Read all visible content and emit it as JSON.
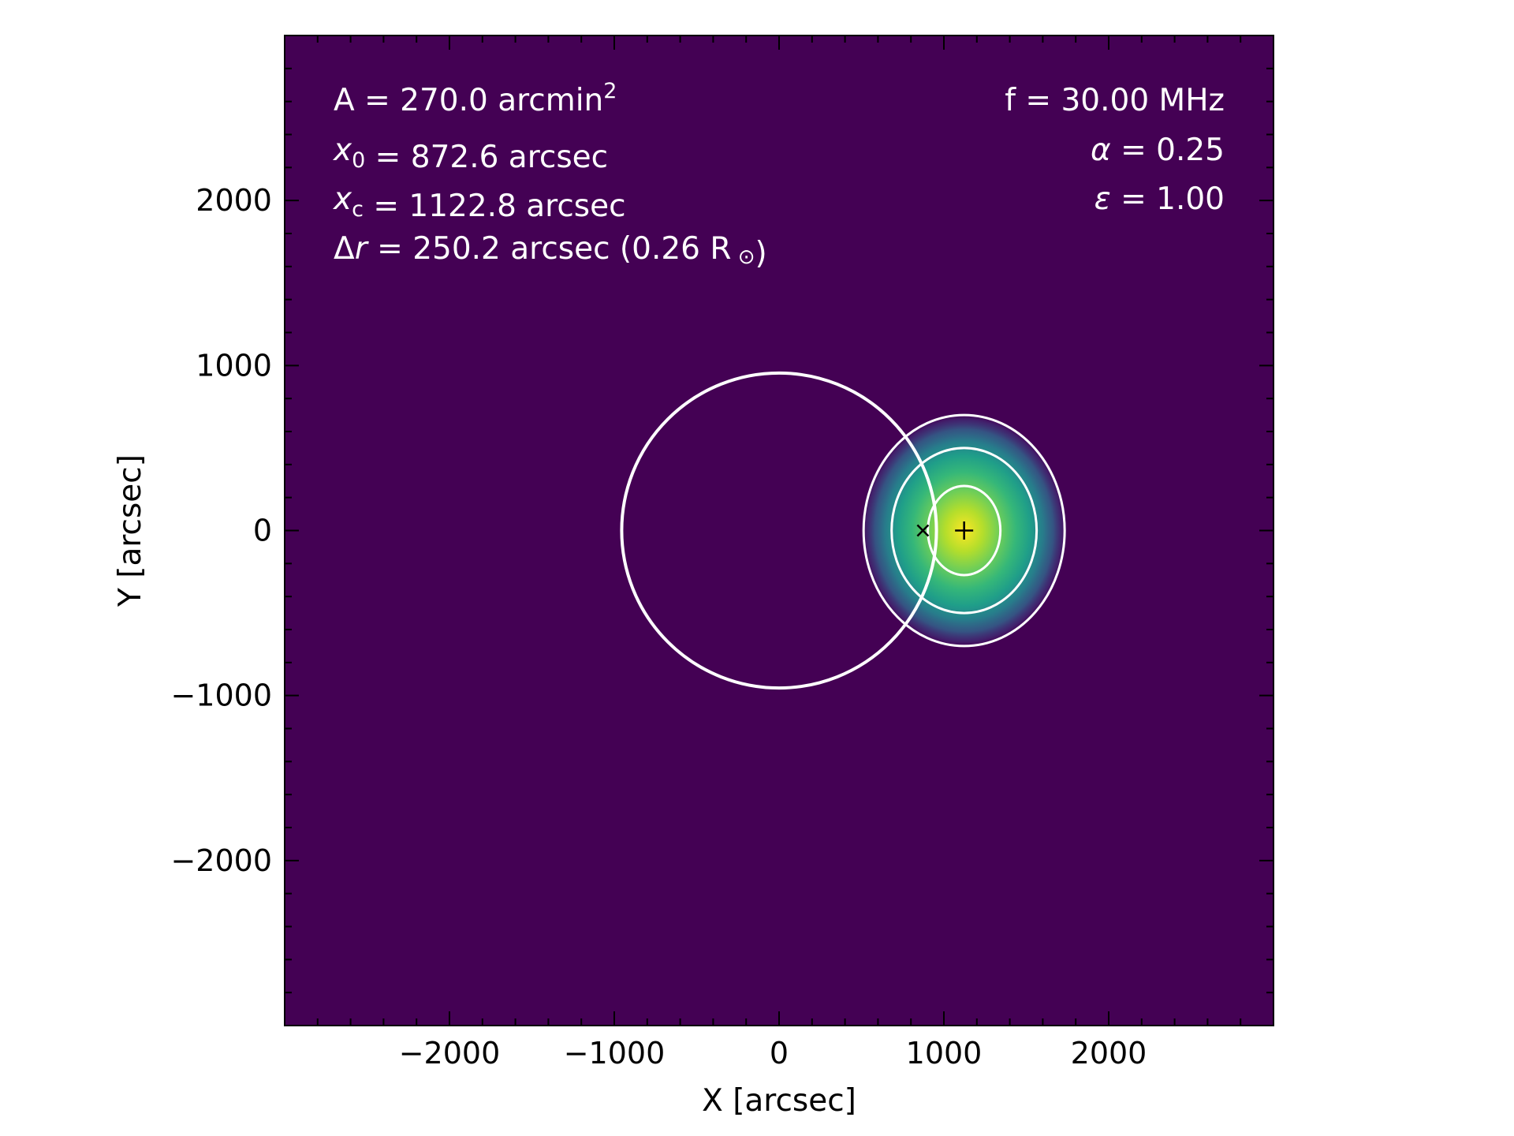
{
  "chart_data": {
    "type": "heatmap",
    "title": "",
    "xlabel": "X [arcsec]",
    "ylabel": "Y [arcsec]",
    "xlim": [
      -3000,
      3000
    ],
    "ylim": [
      -3000,
      3000
    ],
    "xticks": [
      -2000,
      -1000,
      0,
      1000,
      2000
    ],
    "yticks": [
      -2000,
      -1000,
      0,
      1000,
      2000
    ],
    "xtick_labels": [
      "−2000",
      "−1000",
      "0",
      "1000",
      "2000"
    ],
    "ytick_labels": [
      "−2000",
      "−1000",
      "0",
      "1000",
      "2000"
    ],
    "minor_tick_step": 200,
    "grid": false,
    "colormap": "viridis",
    "source_center": [
      1122.8,
      0
    ],
    "source_sigma": [
      300,
      340
    ],
    "source_halo_sigma": [
      560,
      900
    ],
    "contour_radii": [
      [
        220,
        270
      ],
      [
        440,
        500
      ],
      [
        610,
        700
      ]
    ],
    "solar_disk": {
      "center": [
        0,
        0
      ],
      "radius": 955
    },
    "markers": [
      {
        "symbol": "x",
        "label": "x0",
        "x": 872.6,
        "y": 0
      },
      {
        "symbol": "+",
        "label": "xc",
        "x": 1122.8,
        "y": 0
      }
    ],
    "annotations_left": [
      {
        "prefix": "A  = 270.0 arcmin",
        "sup": "2",
        "suffix": ""
      },
      {
        "var": "x",
        "sub": "0",
        "text": " = 872.6 arcsec"
      },
      {
        "var": "x",
        "sub": "c",
        "text": " = 1122.8 arcsec"
      },
      {
        "prefix": "Δ",
        "var": "r",
        "text": " = 250.2 arcsec (0.26 R",
        "sun": "⊙",
        "close": ")"
      }
    ],
    "annotations_right": [
      {
        "text": "f = 30.00 MHz"
      },
      {
        "var": "α",
        "text": " = 0.25"
      },
      {
        "var": "ε",
        "text": " = 1.00"
      }
    ]
  },
  "colors": {
    "background": "#440154",
    "viridis_stops": [
      "#440154",
      "#482878",
      "#3e4989",
      "#31688e",
      "#26828e",
      "#1f9e89",
      "#35b779",
      "#6ece58",
      "#b5de2b",
      "#fde725"
    ],
    "contour": "#ffffff",
    "marker": "#000000"
  }
}
